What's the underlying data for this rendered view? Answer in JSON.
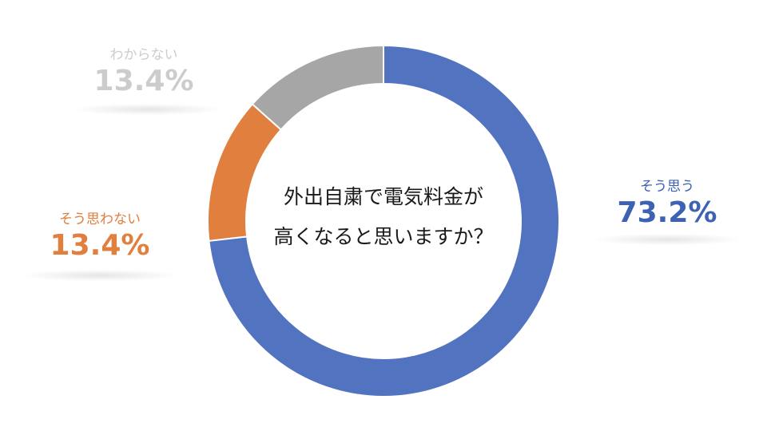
{
  "chart_data": {
    "type": "pie",
    "style": "donut",
    "title": "外出自粛で電気料金が高くなると思いますか？",
    "title_lines": [
      "外出自粛で電気料金が",
      "高くなると思いますか？"
    ],
    "categories": [
      "そう思う",
      "そう思わない",
      "わからない"
    ],
    "values": [
      73.2,
      13.4,
      13.4
    ],
    "value_labels": [
      "73.2%",
      "13.4%",
      "13.4%"
    ],
    "colors": [
      "#5273c0",
      "#e07f3e",
      "#a6a6a6"
    ],
    "label_colors": [
      "#3d62b3",
      "#e07f3e",
      "#cccccc"
    ],
    "start_angle_deg": 0,
    "direction": "clockwise",
    "legend": "none"
  }
}
